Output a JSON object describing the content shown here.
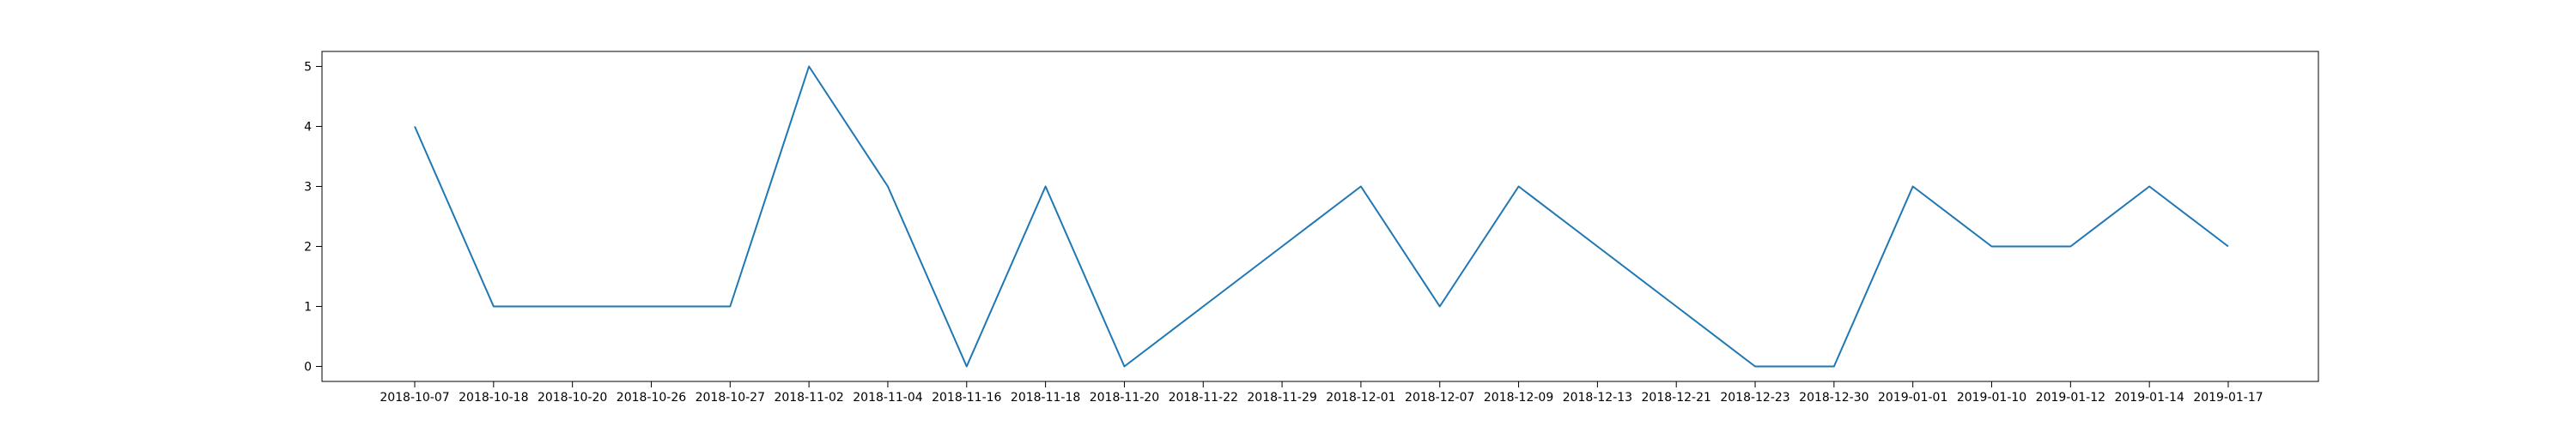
{
  "chart_data": {
    "type": "line",
    "title": "",
    "xlabel": "",
    "ylabel": "",
    "categories": [
      "2018-10-07",
      "2018-10-18",
      "2018-10-20",
      "2018-10-26",
      "2018-10-27",
      "2018-11-02",
      "2018-11-04",
      "2018-11-16",
      "2018-11-18",
      "2018-11-20",
      "2018-11-22",
      "2018-11-29",
      "2018-12-01",
      "2018-12-07",
      "2018-12-09",
      "2018-12-13",
      "2018-12-21",
      "2018-12-23",
      "2018-12-30",
      "2019-01-01",
      "2019-01-10",
      "2019-01-12",
      "2019-01-14",
      "2019-01-17"
    ],
    "values": [
      4,
      1,
      1,
      1,
      1,
      5,
      3,
      0,
      3,
      0,
      1,
      2,
      3,
      1,
      3,
      2,
      1,
      0,
      0,
      3,
      2,
      2,
      3,
      2
    ],
    "yticks": [
      0,
      1,
      2,
      3,
      4,
      5
    ],
    "ylim": [
      -0.25,
      5.25
    ],
    "grid": false,
    "color": "#1f77b4"
  }
}
